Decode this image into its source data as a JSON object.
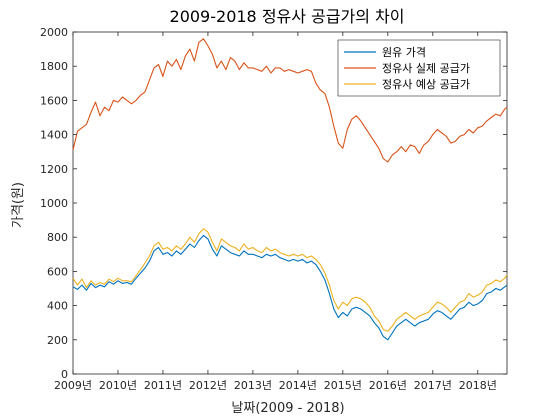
{
  "chart_data": {
    "type": "line",
    "title": "2009-2018 정유사 공급가의 차이",
    "xlabel": "날짜(2009 - 2018)",
    "ylabel": "가격(원)",
    "xlim": [
      2009,
      2018.65
    ],
    "ylim": [
      0,
      2000
    ],
    "x_ticks": [
      {
        "value": 2009,
        "label": "2009년"
      },
      {
        "value": 2010,
        "label": "2010년"
      },
      {
        "value": 2011,
        "label": "2011년"
      },
      {
        "value": 2012,
        "label": "2012년"
      },
      {
        "value": 2013,
        "label": "2013년"
      },
      {
        "value": 2014,
        "label": "2014년"
      },
      {
        "value": 2015,
        "label": "2015년"
      },
      {
        "value": 2016,
        "label": "2016년"
      },
      {
        "value": 2017,
        "label": "2017년"
      },
      {
        "value": 2018,
        "label": "2018년"
      }
    ],
    "y_ticks": [
      0,
      200,
      400,
      600,
      800,
      1000,
      1200,
      1400,
      1600,
      1800,
      2000
    ],
    "grid": false,
    "legend_position": "top-right",
    "x": [
      2009.0,
      2009.1,
      2009.2,
      2009.3,
      2009.4,
      2009.5,
      2009.6,
      2009.7,
      2009.8,
      2009.9,
      2010.0,
      2010.1,
      2010.2,
      2010.3,
      2010.4,
      2010.5,
      2010.6,
      2010.7,
      2010.8,
      2010.9,
      2011.0,
      2011.1,
      2011.2,
      2011.3,
      2011.4,
      2011.5,
      2011.6,
      2011.7,
      2011.8,
      2011.9,
      2012.0,
      2012.1,
      2012.2,
      2012.3,
      2012.4,
      2012.5,
      2012.6,
      2012.7,
      2012.8,
      2012.9,
      2013.0,
      2013.1,
      2013.2,
      2013.3,
      2013.4,
      2013.5,
      2013.6,
      2013.7,
      2013.8,
      2013.9,
      2014.0,
      2014.1,
      2014.2,
      2014.3,
      2014.4,
      2014.5,
      2014.6,
      2014.7,
      2014.8,
      2014.9,
      2015.0,
      2015.1,
      2015.2,
      2015.3,
      2015.4,
      2015.5,
      2015.6,
      2015.7,
      2015.8,
      2015.9,
      2016.0,
      2016.1,
      2016.2,
      2016.3,
      2016.4,
      2016.5,
      2016.6,
      2016.7,
      2016.8,
      2016.9,
      2017.0,
      2017.1,
      2017.2,
      2017.3,
      2017.4,
      2017.5,
      2017.6,
      2017.7,
      2017.8,
      2017.9,
      2018.0,
      2018.1,
      2018.2,
      2018.3,
      2018.4,
      2018.5,
      2018.6,
      2018.65
    ],
    "series": [
      {
        "name": "원유 가격",
        "color": "#0072BD",
        "values": [
          510,
          495,
          520,
          490,
          530,
          505,
          520,
          510,
          540,
          525,
          545,
          530,
          535,
          525,
          560,
          590,
          620,
          660,
          720,
          740,
          700,
          710,
          690,
          720,
          700,
          730,
          760,
          740,
          780,
          810,
          790,
          730,
          690,
          750,
          730,
          710,
          700,
          690,
          720,
          700,
          700,
          690,
          680,
          700,
          690,
          700,
          680,
          670,
          660,
          670,
          660,
          670,
          650,
          660,
          640,
          600,
          550,
          470,
          380,
          330,
          360,
          340,
          380,
          390,
          380,
          360,
          340,
          300,
          270,
          220,
          200,
          240,
          280,
          300,
          320,
          300,
          280,
          300,
          310,
          320,
          350,
          370,
          360,
          340,
          320,
          350,
          380,
          390,
          420,
          400,
          410,
          430,
          470,
          480,
          500,
          490,
          510,
          520
        ]
      },
      {
        "name": "정유사 실제 공급가",
        "color": "#D95319",
        "values": [
          1310,
          1420,
          1440,
          1460,
          1530,
          1590,
          1510,
          1560,
          1540,
          1600,
          1590,
          1620,
          1600,
          1580,
          1600,
          1630,
          1650,
          1720,
          1790,
          1810,
          1740,
          1830,
          1800,
          1840,
          1780,
          1860,
          1900,
          1830,
          1940,
          1960,
          1920,
          1870,
          1790,
          1830,
          1780,
          1850,
          1830,
          1780,
          1820,
          1790,
          1790,
          1780,
          1770,
          1800,
          1760,
          1790,
          1790,
          1770,
          1780,
          1770,
          1760,
          1770,
          1780,
          1770,
          1700,
          1660,
          1640,
          1560,
          1450,
          1350,
          1320,
          1430,
          1490,
          1510,
          1480,
          1440,
          1400,
          1360,
          1320,
          1260,
          1240,
          1280,
          1300,
          1330,
          1300,
          1340,
          1330,
          1290,
          1340,
          1360,
          1400,
          1430,
          1410,
          1390,
          1350,
          1360,
          1390,
          1400,
          1430,
          1410,
          1440,
          1450,
          1480,
          1500,
          1520,
          1510,
          1550,
          1560
        ]
      },
      {
        "name": "정유사 예상 공급가",
        "color": "#EDB120",
        "values": [
          560,
          520,
          555,
          505,
          545,
          520,
          535,
          525,
          555,
          540,
          560,
          545,
          545,
          540,
          575,
          610,
          650,
          690,
          750,
          770,
          730,
          740,
          720,
          750,
          730,
          760,
          800,
          770,
          820,
          850,
          830,
          770,
          720,
          790,
          770,
          750,
          740,
          720,
          760,
          730,
          740,
          720,
          710,
          740,
          720,
          730,
          710,
          700,
          690,
          700,
          690,
          700,
          680,
          690,
          670,
          640,
          590,
          520,
          430,
          380,
          420,
          400,
          440,
          450,
          440,
          420,
          390,
          340,
          310,
          260,
          250,
          280,
          320,
          340,
          360,
          340,
          320,
          340,
          350,
          360,
          390,
          420,
          410,
          390,
          360,
          390,
          420,
          430,
          470,
          450,
          460,
          480,
          520,
          530,
          550,
          540,
          560,
          580
        ]
      }
    ]
  }
}
